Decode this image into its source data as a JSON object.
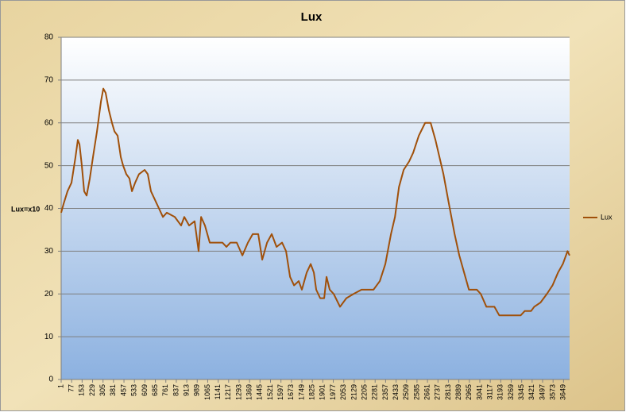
{
  "chart_data": {
    "type": "line",
    "title": "Lux",
    "y_label": "Lux=x10",
    "x": [
      1,
      18,
      47,
      76,
      105,
      122,
      134,
      151,
      168,
      186,
      209,
      232,
      261,
      290,
      307,
      324,
      347,
      370,
      388,
      411,
      434,
      451,
      474,
      497,
      515,
      538,
      566,
      607,
      630,
      653,
      682,
      711,
      740,
      768,
      826,
      872,
      895,
      930,
      970,
      999,
      1017,
      1045,
      1080,
      1172,
      1201,
      1230,
      1276,
      1317,
      1357,
      1392,
      1432,
      1461,
      1496,
      1530,
      1565,
      1605,
      1634,
      1663,
      1692,
      1726,
      1749,
      1784,
      1813,
      1836,
      1853,
      1882,
      1911,
      1928,
      1951,
      1980,
      2026,
      2072,
      2124,
      2182,
      2269,
      2315,
      2355,
      2396,
      2425,
      2454,
      2488,
      2528,
      2557,
      2598,
      2644,
      2684,
      2719,
      2748,
      2777,
      2817,
      2858,
      2892,
      2927,
      2962,
      3019,
      3048,
      3089,
      3147,
      3182,
      3251,
      3338,
      3367,
      3413,
      3436,
      3482,
      3528,
      3569,
      3609,
      3644,
      3678,
      3693
    ],
    "series": [
      {
        "name": "Lux",
        "color": "#a0500a",
        "values": [
          39,
          41,
          44,
          46,
          52,
          56,
          55,
          50,
          44,
          43,
          47,
          52,
          58,
          65,
          68,
          67,
          63,
          60,
          58,
          57,
          52,
          50,
          48,
          47,
          44,
          46,
          48,
          49,
          48,
          44,
          42,
          40,
          38,
          39,
          38,
          36,
          38,
          36,
          37,
          30,
          38,
          36,
          32,
          32,
          31,
          32,
          32,
          29,
          32,
          34,
          34,
          28,
          32,
          34,
          31,
          32,
          30,
          24,
          22,
          23,
          21,
          25,
          27,
          25,
          21,
          19,
          19,
          24,
          21,
          20,
          17,
          19,
          20,
          21,
          21,
          23,
          27,
          34,
          38,
          45,
          49,
          51,
          53,
          57,
          60,
          60,
          56,
          52,
          48,
          41,
          34,
          29,
          25,
          21,
          21,
          20,
          17,
          17,
          15,
          15,
          15,
          16,
          16,
          17,
          18,
          20,
          22,
          25,
          27,
          30,
          29
        ]
      }
    ],
    "xlim": [
      1,
      3693
    ],
    "xticks": [
      1,
      77,
      153,
      229,
      305,
      381,
      457,
      533,
      609,
      685,
      761,
      837,
      913,
      989,
      1065,
      1141,
      1217,
      1293,
      1369,
      1445,
      1521,
      1597,
      1673,
      1749,
      1825,
      1901,
      1977,
      2053,
      2129,
      2205,
      2281,
      2357,
      2433,
      2509,
      2585,
      2661,
      2737,
      2813,
      2889,
      2965,
      3041,
      3117,
      3193,
      3269,
      3345,
      3421,
      3497,
      3573,
      3649
    ],
    "ylim": [
      0,
      80
    ],
    "yticks": [
      0,
      10,
      20,
      30,
      40,
      50,
      60,
      70,
      80
    ],
    "grid": true,
    "legend": "right"
  }
}
